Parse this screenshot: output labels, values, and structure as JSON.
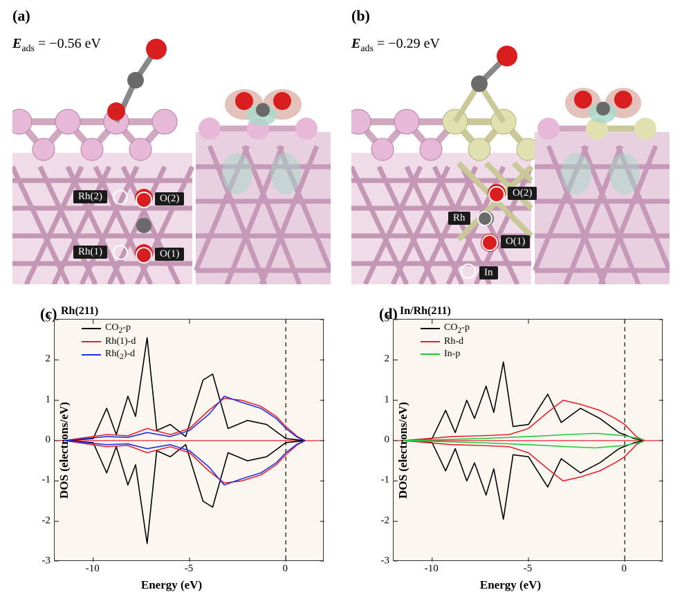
{
  "panel_a": {
    "label": "(a)",
    "eads_prefix": "E",
    "eads_sub": "ads",
    "eads_value": " = −0.56 eV",
    "atoms": {
      "rh1": "Rh(1)",
      "rh2": "Rh(2)",
      "o1": "O(1)",
      "o2": "O(2)"
    },
    "colors": {
      "rh": "#e8b8d8",
      "o": "#d81e1e",
      "c": "#6a6a6a",
      "iso_pos": "#d8a8a0",
      "iso_neg": "#a8d8c8"
    }
  },
  "panel_b": {
    "label": "(b)",
    "eads_prefix": "E",
    "eads_sub": "ads",
    "eads_value": " = −0.29 eV",
    "atoms": {
      "rh": "Rh",
      "in": "In",
      "o1": "O(1)",
      "o2": "O(2)"
    },
    "colors": {
      "rh": "#e8b8d8",
      "in": "#e0e0b0",
      "o": "#d81e1e",
      "c": "#6a6a6a"
    }
  },
  "panel_c": {
    "label": "(c)",
    "title": "Rh(211)",
    "xlabel": "Energy (eV)",
    "ylabel": "DOS (electrons/eV)",
    "xlim": [
      -12,
      2
    ],
    "ylim": [
      -3,
      3
    ],
    "xticks": [
      -10,
      -5,
      0
    ],
    "yticks": [
      -3,
      -2,
      -1,
      0,
      1,
      2,
      3
    ],
    "fermi_x": 0,
    "background": "#fcf6f0",
    "axis_color": "#333333",
    "series": [
      {
        "name": "CO₂-p",
        "legend": "CO2-p",
        "color": "#000000",
        "up": [
          [
            -11.5,
            0
          ],
          [
            -10,
            0.05
          ],
          [
            -9.3,
            0.8
          ],
          [
            -8.8,
            0.15
          ],
          [
            -8.2,
            1.1
          ],
          [
            -7.8,
            0.6
          ],
          [
            -7.2,
            2.55
          ],
          [
            -6.7,
            0.25
          ],
          [
            -6,
            0.4
          ],
          [
            -5.2,
            0.1
          ],
          [
            -4.3,
            1.5
          ],
          [
            -3.8,
            1.65
          ],
          [
            -3,
            0.3
          ],
          [
            -2,
            0.5
          ],
          [
            -1,
            0.4
          ],
          [
            0,
            0.05
          ],
          [
            1,
            0
          ]
        ],
        "down": [
          [
            -11.5,
            0
          ],
          [
            -10,
            -0.05
          ],
          [
            -9.3,
            -0.8
          ],
          [
            -8.8,
            -0.15
          ],
          [
            -8.2,
            -1.1
          ],
          [
            -7.8,
            -0.6
          ],
          [
            -7.2,
            -2.55
          ],
          [
            -6.7,
            -0.25
          ],
          [
            -6,
            -0.4
          ],
          [
            -5.2,
            -0.1
          ],
          [
            -4.3,
            -1.5
          ],
          [
            -3.8,
            -1.65
          ],
          [
            -3,
            -0.3
          ],
          [
            -2,
            -0.5
          ],
          [
            -1,
            -0.4
          ],
          [
            0,
            -0.05
          ],
          [
            1,
            0
          ]
        ]
      },
      {
        "name": "Rh(1)-d",
        "legend": "Rh(1)-d",
        "color": "#e6202a",
        "up": [
          [
            -11.5,
            0
          ],
          [
            -9.3,
            0.15
          ],
          [
            -8.2,
            0.12
          ],
          [
            -7.2,
            0.3
          ],
          [
            -6,
            0.15
          ],
          [
            -5,
            0.3
          ],
          [
            -4,
            0.75
          ],
          [
            -3.2,
            1.05
          ],
          [
            -2.3,
            1.0
          ],
          [
            -1.3,
            0.85
          ],
          [
            -0.5,
            0.6
          ],
          [
            0,
            0.35
          ],
          [
            0.6,
            0.1
          ],
          [
            1,
            0
          ]
        ],
        "down": [
          [
            -11.5,
            0
          ],
          [
            -9.3,
            -0.15
          ],
          [
            -8.2,
            -0.12
          ],
          [
            -7.2,
            -0.3
          ],
          [
            -6,
            -0.15
          ],
          [
            -5,
            -0.3
          ],
          [
            -4,
            -0.75
          ],
          [
            -3.2,
            -1.05
          ],
          [
            -2.3,
            -1.0
          ],
          [
            -1.3,
            -0.85
          ],
          [
            -0.5,
            -0.6
          ],
          [
            0,
            -0.35
          ],
          [
            0.6,
            -0.1
          ],
          [
            1,
            0
          ]
        ]
      },
      {
        "name": "Rh(2)-d",
        "legend": "Rh(2)-d",
        "color": "#2030e0",
        "up": [
          [
            -11.5,
            0
          ],
          [
            -9.3,
            0.1
          ],
          [
            -8.2,
            0.08
          ],
          [
            -7.2,
            0.2
          ],
          [
            -6,
            0.1
          ],
          [
            -5,
            0.25
          ],
          [
            -4,
            0.65
          ],
          [
            -3.2,
            1.1
          ],
          [
            -2.3,
            0.95
          ],
          [
            -1.3,
            0.8
          ],
          [
            -0.5,
            0.55
          ],
          [
            0,
            0.3
          ],
          [
            0.6,
            0.08
          ],
          [
            1,
            0
          ]
        ],
        "down": [
          [
            -11.5,
            0
          ],
          [
            -9.3,
            -0.1
          ],
          [
            -8.2,
            -0.08
          ],
          [
            -7.2,
            -0.2
          ],
          [
            -6,
            -0.1
          ],
          [
            -5,
            -0.25
          ],
          [
            -4,
            -0.65
          ],
          [
            -3.2,
            -1.1
          ],
          [
            -2.3,
            -0.95
          ],
          [
            -1.3,
            -0.8
          ],
          [
            -0.5,
            -0.55
          ],
          [
            0,
            -0.3
          ],
          [
            0.6,
            -0.08
          ],
          [
            1,
            0
          ]
        ]
      }
    ]
  },
  "panel_d": {
    "label": "(d)",
    "title": "In/Rh(211)",
    "xlabel": "Energy (eV)",
    "ylabel": "DOS (electrons/eV)",
    "xlim": [
      -12,
      2
    ],
    "ylim": [
      -3,
      3
    ],
    "xticks": [
      -10,
      -5,
      0
    ],
    "yticks": [
      -3,
      -2,
      -1,
      0,
      1,
      2,
      3
    ],
    "fermi_x": 0,
    "background": "#fcf6f0",
    "axis_color": "#333333",
    "series": [
      {
        "name": "CO₂-p",
        "legend": "CO2-p",
        "color": "#000000",
        "up": [
          [
            -11.5,
            0
          ],
          [
            -10,
            0.05
          ],
          [
            -9.3,
            0.75
          ],
          [
            -8.8,
            0.2
          ],
          [
            -8.2,
            1.0
          ],
          [
            -7.8,
            0.55
          ],
          [
            -7.2,
            1.35
          ],
          [
            -6.8,
            0.7
          ],
          [
            -6.3,
            1.95
          ],
          [
            -5.8,
            0.35
          ],
          [
            -5,
            0.4
          ],
          [
            -4,
            1.15
          ],
          [
            -3.3,
            0.45
          ],
          [
            -2.3,
            0.8
          ],
          [
            -1.3,
            0.55
          ],
          [
            -0.3,
            0.2
          ],
          [
            0.5,
            0.05
          ],
          [
            1,
            0
          ]
        ],
        "down": [
          [
            -11.5,
            0
          ],
          [
            -10,
            -0.05
          ],
          [
            -9.3,
            -0.75
          ],
          [
            -8.8,
            -0.2
          ],
          [
            -8.2,
            -1.0
          ],
          [
            -7.8,
            -0.55
          ],
          [
            -7.2,
            -1.35
          ],
          [
            -6.8,
            -0.7
          ],
          [
            -6.3,
            -1.95
          ],
          [
            -5.8,
            -0.35
          ],
          [
            -5,
            -0.4
          ],
          [
            -4,
            -1.15
          ],
          [
            -3.3,
            -0.45
          ],
          [
            -2.3,
            -0.8
          ],
          [
            -1.3,
            -0.55
          ],
          [
            -0.3,
            -0.2
          ],
          [
            0.5,
            -0.05
          ],
          [
            1,
            0
          ]
        ]
      },
      {
        "name": "Rh-d",
        "legend": "Rh-d",
        "color": "#e6202a",
        "up": [
          [
            -11.5,
            0
          ],
          [
            -9,
            0.1
          ],
          [
            -7.5,
            0.12
          ],
          [
            -6,
            0.15
          ],
          [
            -5,
            0.3
          ],
          [
            -4,
            0.7
          ],
          [
            -3.2,
            1.0
          ],
          [
            -2.3,
            0.9
          ],
          [
            -1.3,
            0.75
          ],
          [
            -0.5,
            0.55
          ],
          [
            0,
            0.4
          ],
          [
            0.6,
            0.1
          ],
          [
            1,
            0
          ]
        ],
        "down": [
          [
            -11.5,
            0
          ],
          [
            -9,
            -0.1
          ],
          [
            -7.5,
            -0.12
          ],
          [
            -6,
            -0.15
          ],
          [
            -5,
            -0.3
          ],
          [
            -4,
            -0.7
          ],
          [
            -3.2,
            -1.0
          ],
          [
            -2.3,
            -0.9
          ],
          [
            -1.3,
            -0.75
          ],
          [
            -0.5,
            -0.55
          ],
          [
            0,
            -0.4
          ],
          [
            0.6,
            -0.1
          ],
          [
            1,
            0
          ]
        ]
      },
      {
        "name": "In-p",
        "legend": "In-p",
        "color": "#20c840",
        "up": [
          [
            -11.5,
            0
          ],
          [
            -9,
            0.03
          ],
          [
            -7,
            0.06
          ],
          [
            -5,
            0.1
          ],
          [
            -3,
            0.15
          ],
          [
            -1.5,
            0.18
          ],
          [
            0,
            0.12
          ],
          [
            1,
            0.02
          ]
        ],
        "down": [
          [
            -11.5,
            0
          ],
          [
            -9,
            -0.03
          ],
          [
            -7,
            -0.06
          ],
          [
            -5,
            -0.1
          ],
          [
            -3,
            -0.15
          ],
          [
            -1.5,
            -0.18
          ],
          [
            0,
            -0.12
          ],
          [
            1,
            -0.02
          ]
        ]
      }
    ]
  }
}
